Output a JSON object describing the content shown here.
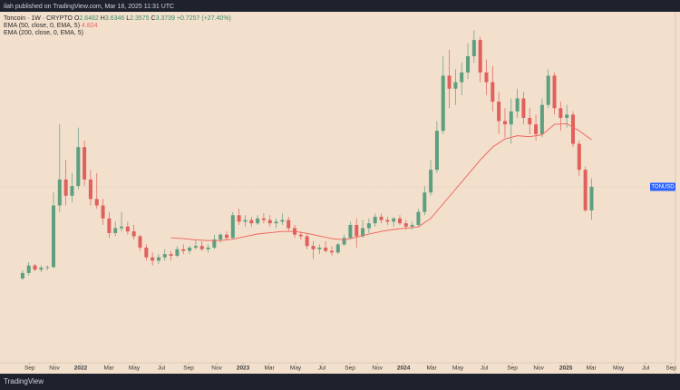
{
  "chart_data": {
    "type": "candlestick",
    "published": "ilah published on TradingView.com, Mar 16, 2025 11:31 UTC",
    "brand": "TradingView",
    "header": {
      "symbol": "Toncoin · 1W · CRYPTO",
      "labels": {
        "open": "O",
        "high": "H",
        "low": "L",
        "close": "C"
      },
      "change": "+0.7257 (+27.40%)"
    },
    "price_label": "TONUSD",
    "up_color": "#5e9f80",
    "down_color": "#e0605c",
    "x": [
      0,
      2,
      4,
      6,
      8,
      10,
      12,
      14,
      16,
      18,
      20,
      22,
      24,
      26,
      28,
      30,
      32,
      34,
      36,
      38,
      40,
      42,
      44,
      46,
      48,
      50,
      52,
      54,
      56,
      58,
      60,
      62,
      64,
      66,
      68,
      70,
      72,
      74,
      76,
      78,
      80,
      82,
      84,
      86,
      88,
      90,
      92,
      94,
      96,
      98,
      100,
      102,
      104,
      106,
      108,
      110,
      112,
      114,
      116,
      118,
      120,
      122,
      124,
      126,
      128,
      130,
      132,
      134,
      136,
      138,
      140,
      142,
      144,
      146,
      148,
      150,
      152,
      154,
      156,
      158,
      160,
      162,
      164,
      166,
      168,
      170,
      172,
      174,
      176,
      178,
      180,
      182,
      184
    ],
    "open": [
      0.55,
      0.72,
      0.95,
      0.82,
      0.88,
      0.9,
      2.8,
      3.6,
      3.1,
      3.4,
      4.6,
      3.6,
      3.0,
      2.8,
      2.4,
      1.95,
      2.1,
      2.15,
      2.0,
      1.85,
      1.5,
      1.2,
      1.1,
      1.2,
      1.3,
      1.25,
      1.45,
      1.4,
      1.5,
      1.55,
      1.45,
      1.5,
      1.75,
      1.9,
      1.8,
      2.5,
      2.3,
      2.35,
      2.25,
      2.4,
      2.35,
      2.25,
      2.3,
      2.35,
      2.1,
      1.9,
      1.85,
      1.55,
      1.45,
      1.5,
      1.4,
      1.35,
      1.6,
      1.8,
      2.2,
      1.85,
      2.1,
      2.25,
      2.45,
      2.35,
      2.3,
      2.4,
      2.25,
      2.15,
      2.2,
      2.6,
      3.2,
      3.9,
      5.1,
      6.8,
      6.4,
      6.6,
      6.9,
      7.4,
      7.9,
      6.9,
      6.6,
      6.0,
      5.4,
      5.3,
      5.7,
      6.1,
      5.5,
      5.3,
      5.0,
      5.9,
      6.8,
      5.8,
      5.5,
      5.6,
      4.7,
      3.9,
      2.6482
    ],
    "high": [
      0.8,
      1.05,
      1.0,
      0.95,
      0.95,
      3.2,
      5.3,
      4.2,
      3.8,
      5.2,
      4.8,
      3.9,
      3.8,
      3.0,
      2.6,
      2.3,
      2.6,
      2.3,
      2.2,
      1.9,
      1.6,
      1.35,
      1.3,
      1.45,
      1.4,
      1.55,
      1.6,
      1.55,
      1.75,
      1.7,
      1.6,
      1.9,
      1.95,
      2.0,
      2.6,
      2.7,
      2.5,
      2.45,
      2.5,
      2.55,
      2.5,
      2.4,
      2.55,
      2.45,
      2.2,
      2.0,
      1.95,
      1.7,
      1.6,
      1.7,
      1.55,
      1.65,
      1.9,
      2.3,
      2.4,
      2.35,
      2.4,
      2.55,
      2.55,
      2.45,
      2.45,
      2.5,
      2.35,
      2.3,
      2.7,
      3.4,
      4.2,
      5.4,
      7.4,
      7.6,
      7.0,
      7.2,
      7.8,
      8.2,
      8.0,
      7.3,
      7.1,
      6.3,
      5.8,
      6.1,
      6.4,
      6.3,
      5.8,
      5.6,
      6.1,
      7.0,
      6.9,
      6.0,
      5.9,
      5.7,
      4.8,
      4.0,
      3.6346
    ],
    "low": [
      0.5,
      0.65,
      0.78,
      0.75,
      0.8,
      0.88,
      2.6,
      2.8,
      2.9,
      3.3,
      3.4,
      2.8,
      2.7,
      2.2,
      1.8,
      1.85,
      2.0,
      1.9,
      1.75,
      1.4,
      1.1,
      0.95,
      1.0,
      1.1,
      1.1,
      1.2,
      1.3,
      1.3,
      1.45,
      1.4,
      1.35,
      1.45,
      1.65,
      1.75,
      1.75,
      2.2,
      2.15,
      2.15,
      2.2,
      2.25,
      2.15,
      2.1,
      2.2,
      2.0,
      1.8,
      1.75,
      1.45,
      1.15,
      1.3,
      1.35,
      1.25,
      1.3,
      1.55,
      1.75,
      1.5,
      1.8,
      1.95,
      2.15,
      2.25,
      2.2,
      2.15,
      2.2,
      2.05,
      2.05,
      2.15,
      2.5,
      3.1,
      3.8,
      5.0,
      5.8,
      5.9,
      6.2,
      6.7,
      7.2,
      6.6,
      6.2,
      5.7,
      5.0,
      4.9,
      4.7,
      5.5,
      5.3,
      5.0,
      4.8,
      4.9,
      5.8,
      5.6,
      5.1,
      5.2,
      4.6,
      3.7,
      2.6,
      2.3575
    ],
    "close": [
      0.72,
      0.95,
      0.82,
      0.88,
      0.9,
      2.8,
      3.6,
      3.1,
      3.4,
      4.6,
      3.6,
      3.0,
      2.8,
      2.4,
      1.95,
      2.1,
      2.15,
      2.0,
      1.85,
      1.5,
      1.2,
      1.1,
      1.2,
      1.3,
      1.25,
      1.45,
      1.4,
      1.5,
      1.55,
      1.45,
      1.5,
      1.75,
      1.9,
      1.8,
      2.5,
      2.3,
      2.35,
      2.25,
      2.4,
      2.35,
      2.25,
      2.3,
      2.35,
      2.1,
      1.9,
      1.85,
      1.55,
      1.45,
      1.5,
      1.4,
      1.35,
      1.6,
      1.8,
      2.2,
      1.85,
      2.1,
      2.25,
      2.45,
      2.35,
      2.3,
      2.4,
      2.25,
      2.15,
      2.2,
      2.6,
      3.2,
      3.9,
      5.1,
      6.8,
      6.4,
      6.6,
      6.9,
      7.4,
      7.9,
      6.9,
      6.6,
      6.0,
      5.4,
      5.3,
      5.7,
      6.1,
      5.5,
      5.3,
      5.0,
      5.9,
      6.8,
      5.8,
      5.5,
      5.6,
      4.7,
      3.9,
      2.65,
      3.3739
    ],
    "indicators": [
      {
        "name": "EMA (50, close, 0, EMA, 5)",
        "value": 4.824,
        "color": "#f0605a",
        "x": [
          48,
          52,
          56,
          60,
          64,
          68,
          72,
          76,
          80,
          84,
          88,
          92,
          96,
          100,
          104,
          108,
          112,
          116,
          120,
          124,
          128,
          132,
          136,
          140,
          144,
          148,
          152,
          156,
          160,
          164,
          168,
          172,
          176,
          180,
          184
        ],
        "values": [
          1.8,
          1.78,
          1.74,
          1.72,
          1.72,
          1.76,
          1.84,
          1.92,
          1.96,
          2.0,
          2.0,
          1.94,
          1.86,
          1.78,
          1.74,
          1.82,
          1.92,
          2.0,
          2.06,
          2.1,
          2.14,
          2.4,
          2.85,
          3.3,
          3.75,
          4.2,
          4.6,
          4.85,
          4.95,
          4.92,
          4.98,
          5.3,
          5.32,
          5.1,
          4.824
        ]
      },
      {
        "name": "EMA (200, close, 0, EMA, 5)"
      }
    ],
    "xlim": [
      -7.3,
      212.6
    ],
    "ylim": [
      -2.05,
      8.77
    ],
    "xticks": [
      {
        "value": 2.3,
        "label": "Sep"
      },
      {
        "value": 10.3,
        "label": "Nov"
      },
      {
        "value": 18.8,
        "label": "2022"
      },
      {
        "value": 27.9,
        "label": "Mar"
      },
      {
        "value": 36.1,
        "label": "May"
      },
      {
        "value": 44.9,
        "label": "Jul"
      },
      {
        "value": 53.7,
        "label": "Sep"
      },
      {
        "value": 62.8,
        "label": "Nov"
      },
      {
        "value": 71.3,
        "label": "2023"
      },
      {
        "value": 79.8,
        "label": "Mar"
      },
      {
        "value": 88.3,
        "label": "May"
      },
      {
        "value": 96.8,
        "label": "Jul"
      },
      {
        "value": 105.9,
        "label": "Sep"
      },
      {
        "value": 114.7,
        "label": "Nov"
      },
      {
        "value": 123.2,
        "label": "2024"
      },
      {
        "value": 132.3,
        "label": "Mar"
      },
      {
        "value": 140.8,
        "label": "May"
      },
      {
        "value": 149.3,
        "label": "Jul"
      },
      {
        "value": 158.4,
        "label": "Sep"
      },
      {
        "value": 166.9,
        "label": "Nov"
      },
      {
        "value": 175.7,
        "label": "2025"
      },
      {
        "value": 183.9,
        "label": "Mar"
      },
      {
        "value": 192.7,
        "label": "May"
      },
      {
        "value": 201.5,
        "label": "Jul"
      },
      {
        "value": 209.7,
        "label": "Sep"
      }
    ]
  }
}
